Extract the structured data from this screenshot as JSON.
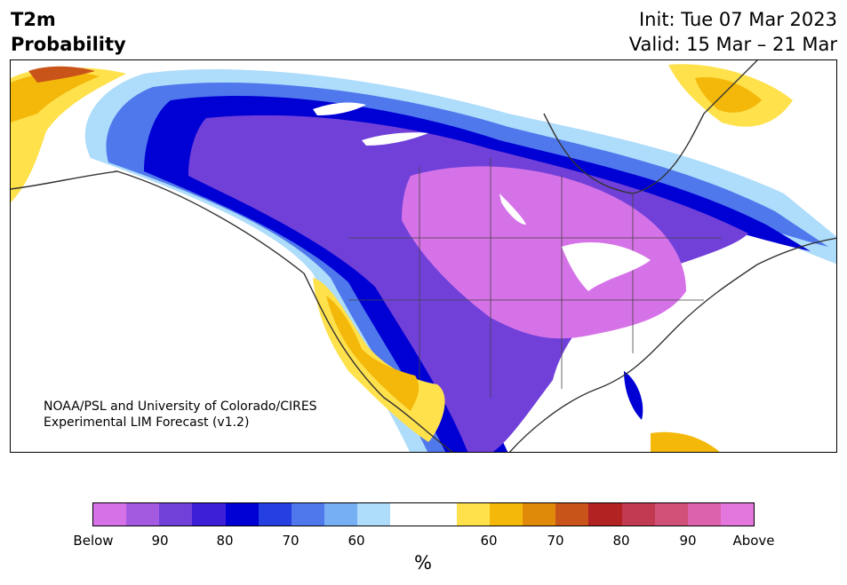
{
  "header": {
    "variable": "T2m",
    "kind": "Probability",
    "init": "Init: Tue 07 Mar 2023",
    "valid": "Valid: 15 Mar – 21 Mar"
  },
  "credit": {
    "line1": "NOAA/PSL and University of Colorado/CIRES",
    "line2": "Experimental LIM Forecast (v1.2)"
  },
  "colorbar": {
    "unit": "%",
    "colors": [
      "#d672e8",
      "#a359e0",
      "#7140d9",
      "#3c1fd6",
      "#0000d4",
      "#263fe0",
      "#4f78ec",
      "#77aff5",
      "#aedcfb",
      "#ffffff",
      "#ffffff",
      "#ffe14c",
      "#f4b80a",
      "#e08a0a",
      "#c8541a",
      "#b22222",
      "#c23a52",
      "#d15078",
      "#dc62ae",
      "#e477dd"
    ],
    "tick_labels": [
      "Below",
      "90",
      "80",
      "70",
      "60",
      "60",
      "70",
      "80",
      "90",
      "Above"
    ]
  },
  "legend_colors": {
    "below_extreme": "#d672e8",
    "below_strong": "#0000d4",
    "neutral": "#ffffff",
    "above_moderate": "#f4b80a",
    "above_extreme": "#e477dd"
  }
}
